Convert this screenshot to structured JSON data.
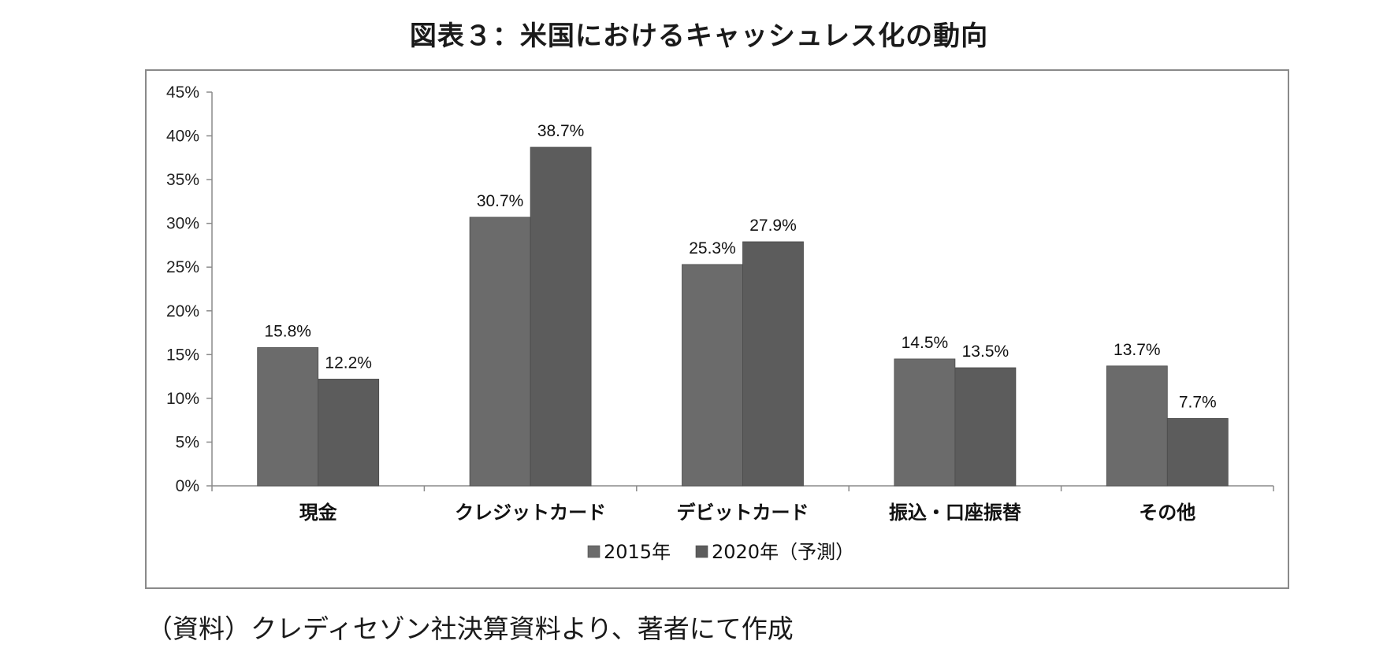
{
  "title": "図表３：米国におけるキャッシュレス化の動向",
  "source_note": "（資料）クレディセゾン社決算資料より、著者にて作成",
  "chart_data": {
    "type": "bar",
    "title": "",
    "xlabel": "",
    "ylabel": "",
    "ylim": [
      0,
      45
    ],
    "y_ticks": [
      0,
      5,
      10,
      15,
      20,
      25,
      30,
      35,
      40,
      45
    ],
    "y_tick_labels": [
      "0%",
      "5%",
      "10%",
      "15%",
      "20%",
      "25%",
      "30%",
      "35%",
      "40%",
      "45%"
    ],
    "categories": [
      "現金",
      "クレジットカード",
      "デビットカード",
      "振込・口座振替",
      "その他"
    ],
    "series": [
      {
        "name": "2015年",
        "values": [
          15.8,
          30.7,
          25.3,
          14.5,
          13.7
        ],
        "labels": [
          "15.8%",
          "30.7%",
          "25.3%",
          "14.5%",
          "13.7%"
        ],
        "color": "#6b6b6b"
      },
      {
        "name": "2020年（予測）",
        "values": [
          12.2,
          38.7,
          27.9,
          13.5,
          7.7
        ],
        "labels": [
          "12.2%",
          "38.7%",
          "27.9%",
          "13.5%",
          "7.7%"
        ],
        "color": "#5c5c5c"
      }
    ],
    "grid": false,
    "legend_position": "bottom"
  }
}
